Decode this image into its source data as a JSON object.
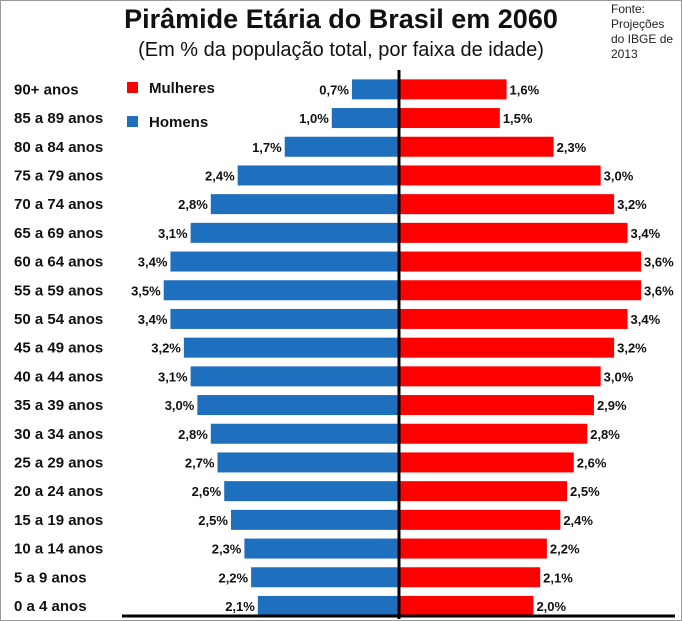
{
  "chart_data": {
    "type": "bar",
    "title": "Pirâmide Etária do Brasil em 2060",
    "subtitle": "(Em % da população total, por faixa de idade)",
    "source": "Fonte:\nProjeções\ndo IBGE de\n2013",
    "categories": [
      "90+ anos",
      "85 a 89 anos",
      "80 a 84 anos",
      "75 a 79 anos",
      "70 a 74 anos",
      "65 a 69 anos",
      "60 a 64 anos",
      "55 a 59 anos",
      "50 a 54 anos",
      "45 a 49 anos",
      "40 a 44 anos",
      "35 a 39 anos",
      "30 a 34 anos",
      "25 a 29 anos",
      "20 a 24 anos",
      "15 a 19 anos",
      "10 a 14 anos",
      "5 a 9 anos",
      "0 a 4 anos"
    ],
    "series": [
      {
        "name": "Homens",
        "color": "#1F6FBF",
        "side": "left",
        "values": [
          0.7,
          1.0,
          1.7,
          2.4,
          2.8,
          3.1,
          3.4,
          3.5,
          3.4,
          3.2,
          3.1,
          3.0,
          2.8,
          2.7,
          2.6,
          2.5,
          2.3,
          2.2,
          2.1
        ],
        "labels": [
          "0,7%",
          "1,0%",
          "1,7%",
          "2,4%",
          "2,8%",
          "3,1%",
          "3,4%",
          "3,5%",
          "3,4%",
          "3,2%",
          "3,1%",
          "3,0%",
          "2,8%",
          "2,7%",
          "2,6%",
          "2,5%",
          "2,3%",
          "2,2%",
          "2,1%"
        ]
      },
      {
        "name": "Mulheres",
        "color": "#FF0000",
        "side": "right",
        "values": [
          1.6,
          1.5,
          2.3,
          3.0,
          3.2,
          3.4,
          3.6,
          3.6,
          3.4,
          3.2,
          3.0,
          2.9,
          2.8,
          2.6,
          2.5,
          2.4,
          2.2,
          2.1,
          2.0
        ],
        "labels": [
          "1,6%",
          "1,5%",
          "2,3%",
          "3,0%",
          "3,2%",
          "3,4%",
          "3,6%",
          "3,6%",
          "3,4%",
          "3,2%",
          "3,0%",
          "2,9%",
          "2,8%",
          "2,6%",
          "2,5%",
          "2,4%",
          "2,2%",
          "2,1%",
          "2,0%"
        ]
      }
    ],
    "legend": {
      "position": "top-left",
      "entries": [
        "Mulheres",
        "Homens"
      ]
    },
    "xlim": [
      0,
      3.6
    ],
    "grid": false
  }
}
